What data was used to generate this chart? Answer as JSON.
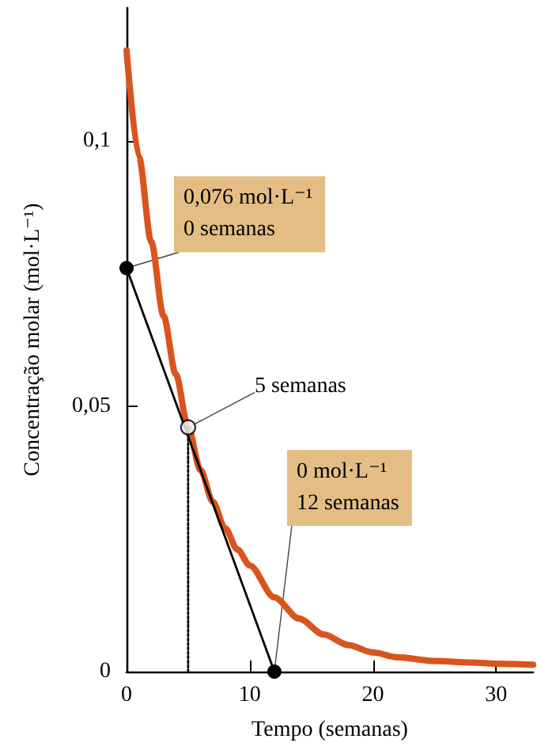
{
  "chart_data": {
    "type": "line",
    "xlabel": "Tempo (semanas)",
    "ylabel": "Concentração molar (mol·L⁻¹)",
    "xlim": [
      0,
      33
    ],
    "xticks": [
      0,
      10,
      20,
      30
    ],
    "ylim": [
      0,
      0.125
    ],
    "yticks": [
      0,
      {
        "value": 0.05,
        "label": "0,05"
      },
      {
        "value": 0.1,
        "label": "0,1"
      }
    ],
    "grid": false,
    "series": [
      {
        "color": "#d9541e",
        "marker": "none",
        "x": [
          0,
          1,
          2,
          3,
          4,
          5,
          6,
          7,
          8,
          9,
          10,
          12,
          14,
          16,
          18,
          20,
          22,
          25,
          28,
          30,
          33
        ],
        "values": [
          0.117,
          0.097,
          0.081,
          0.067,
          0.056,
          0.046,
          0.038,
          0.032,
          0.027,
          0.023,
          0.02,
          0.014,
          0.01,
          0.007,
          0.005,
          0.0036,
          0.0027,
          0.002,
          0.0017,
          0.0015,
          0.0013
        ]
      },
      {
        "color": "#000000",
        "marker": "circle",
        "x": [
          0,
          12
        ],
        "values": [
          0.076,
          0
        ]
      },
      {
        "color": "#000000",
        "marker": "none",
        "line_style": "dotted",
        "x": [
          5,
          5
        ],
        "values": [
          0,
          0.046
        ]
      },
      {
        "type": "scatter",
        "color": "#000000",
        "marker": "circle",
        "x": [
          5
        ],
        "values": [
          0.046
        ]
      }
    ],
    "annotations": [
      {
        "text": "0,076 mol·L⁻¹\n0 semanas",
        "x": 0,
        "y": 0.076
      },
      {
        "text": "5 semanas",
        "x": 5,
        "y": 0.046
      },
      {
        "text": "0 mol·L⁻¹\n12 semanas",
        "x": 12,
        "y": 0
      }
    ]
  }
}
